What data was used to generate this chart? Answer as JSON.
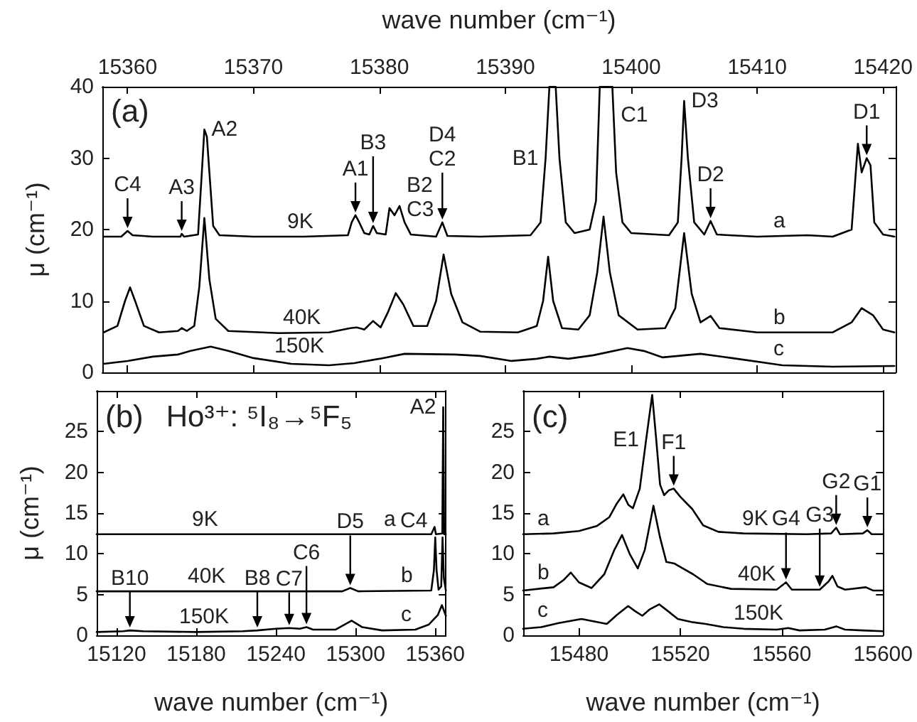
{
  "chart_data": [
    {
      "type": "line",
      "title": "(a)",
      "xlabel": "wave number (cm⁻¹)",
      "ylabel": "μ (cm⁻¹)",
      "xlim": [
        15358,
        15421
      ],
      "xticks": [
        15360,
        15370,
        15380,
        15390,
        15400,
        15410,
        15420
      ],
      "ylim": [
        0,
        40
      ],
      "yticks": [
        0,
        10,
        20,
        30,
        40
      ],
      "marker": "none",
      "series": [
        {
          "name": "9K",
          "color": "#000000",
          "x": [
            15358.1,
            15359.5,
            15360.0,
            15360.4,
            15362,
            15364.2,
            15364.3,
            15364.5,
            15365.6,
            15365.9,
            15366.1,
            15366.3,
            15366.5,
            15366.8,
            15367.3,
            15370,
            15374,
            15377.5,
            15377.8,
            15378.1,
            15378.4,
            15378.8,
            15379.2,
            15379.5,
            15379.8,
            15380.5,
            15380.8,
            15381.2,
            15381.6,
            15382,
            15382.5,
            15384.5,
            15385,
            15385.4,
            15388,
            15392,
            15392.8,
            15393.2,
            15393.5,
            15394,
            15394.3,
            15394.8,
            15395.5,
            15396.7,
            15397.2,
            15397.5,
            15398.5,
            15398.8,
            15399.3,
            15400,
            15403,
            15403.7,
            15404,
            15404.2,
            15404.5,
            15405,
            15405.8,
            15406.3,
            15406.8,
            15410,
            15414,
            15416,
            15417.5,
            15418,
            15418.3,
            15418.7,
            15419,
            15419.3,
            15420,
            15420.9
          ],
          "values": [
            19,
            19,
            19.8,
            19.2,
            19,
            19,
            19.4,
            19,
            19.3,
            28,
            34,
            33,
            28,
            20.5,
            19.2,
            19,
            19,
            19.2,
            21,
            22,
            21,
            19.5,
            19.3,
            20.5,
            19.5,
            19.3,
            23,
            22,
            23.3,
            21,
            19.3,
            19,
            21,
            19.1,
            19,
            19.2,
            21,
            30,
            40,
            40,
            30,
            21,
            19.5,
            20,
            24,
            40,
            40,
            28,
            21,
            19.5,
            19.2,
            21,
            30,
            38,
            30,
            21,
            19.3,
            21.2,
            19.3,
            19,
            19.2,
            19,
            20,
            32,
            28,
            30,
            29,
            21,
            19.3,
            19
          ]
        },
        {
          "name": "40K",
          "color": "#000000",
          "x": [
            15358.1,
            15359.2,
            15359.8,
            15360.2,
            15360.6,
            15361.3,
            15362.5,
            15364,
            15364.3,
            15364.7,
            15365.3,
            15365.7,
            15366.1,
            15366.5,
            15367,
            15368,
            15372,
            15376,
            15377.7,
            15378.2,
            15378.8,
            15379.5,
            15380.1,
            15380.7,
            15381.3,
            15381.9,
            15382.7,
            15383.8,
            15384.5,
            15385.1,
            15385.7,
            15386.6,
            15388,
            15391,
            15392.5,
            15393.0,
            15393.4,
            15393.8,
            15394.5,
            15395.8,
            15396.7,
            15397.3,
            15397.8,
            15398.3,
            15399,
            15400.5,
            15402.7,
            15403.5,
            15404.2,
            15404.8,
            15405.5,
            15406.3,
            15407,
            15410,
            15416,
            15417.5,
            15418.3,
            15419.2,
            15420,
            15420.9
          ],
          "values": [
            5.6,
            6.5,
            10,
            11.9,
            10,
            6.5,
            5.6,
            5.8,
            6.2,
            5.8,
            6.5,
            12,
            21.6,
            13,
            7.5,
            5.8,
            5.5,
            5.6,
            6.2,
            6.3,
            6.0,
            7.2,
            6.3,
            8.5,
            11.1,
            9.5,
            6.5,
            6.5,
            10,
            16.5,
            11,
            7,
            5.7,
            5.6,
            6.5,
            10,
            16.2,
            10,
            6.2,
            6,
            8,
            14,
            21.8,
            14,
            8,
            6,
            6.2,
            9,
            19.5,
            11,
            7,
            7.9,
            6.2,
            5.6,
            5.6,
            7,
            9.0,
            8,
            6,
            5.6
          ]
        },
        {
          "name": "150K",
          "color": "#000000",
          "x": [
            15358.1,
            15360,
            15362,
            15364,
            15365,
            15366.6,
            15368,
            15370,
            15373,
            15376,
            15378,
            15380,
            15382,
            15386,
            15388,
            15390.5,
            15392.5,
            15393.5,
            15395,
            15397,
            15399.7,
            15401,
            15402.5,
            15405.5,
            15408,
            15412,
            15416,
            15420.9
          ],
          "values": [
            1.2,
            1.6,
            2.2,
            2.5,
            3.0,
            3.6,
            3.0,
            2.0,
            1.2,
            1.0,
            1.3,
            1.9,
            2.6,
            2.5,
            2.3,
            1.6,
            1.9,
            2.2,
            1.9,
            2.4,
            3.4,
            3.0,
            2.1,
            2.6,
            2.0,
            1.0,
            0.8,
            0.9
          ]
        }
      ],
      "annotations": [
        "a",
        "b",
        "c",
        {
          "text": "C4",
          "x": 15360.0,
          "y": 19.8
        },
        {
          "text": "A3",
          "x": 15364.3,
          "y": 19.4
        },
        {
          "text": "A1",
          "x": 15378.1,
          "y": 22
        },
        {
          "text": "B3",
          "x": 15379.5,
          "y": 20.5
        },
        {
          "text": "B2\nC3",
          "x": 15381.6,
          "y": 23.3
        },
        {
          "text": "D4\nC2",
          "x": 15385,
          "y": 21
        },
        {
          "text": "D2",
          "x": 15406.3,
          "y": 21.2
        },
        {
          "text": "D1",
          "x": 15418.7,
          "y": 30
        },
        {
          "text": "A2",
          "x": 15366.1,
          "y": 34
        },
        {
          "text": "B1",
          "x": 15393.2,
          "y": 30
        },
        {
          "text": "C1",
          "x": 15398.6,
          "y": 36
        },
        {
          "text": "D3",
          "x": 15404.2,
          "y": 38
        }
      ]
    },
    {
      "type": "line",
      "title": "(b)",
      "xlabel": "wave number (cm⁻¹)",
      "ylabel": "μ (cm⁻¹)",
      "xlim": [
        15105,
        15368
      ],
      "xticks": [
        15120,
        15180,
        15240,
        15300,
        15360
      ],
      "ylim": [
        0,
        30
      ],
      "yticks": [
        0,
        5,
        10,
        15,
        20,
        25
      ],
      "marker": "none",
      "series": [
        {
          "name": "9K",
          "color": "#000000",
          "x": [
            15105,
            15200,
            15300,
            15357,
            15359.5,
            15360.5,
            15365.3,
            15366,
            15366.7,
            15368
          ],
          "values": [
            12.4,
            12.4,
            12.4,
            12.4,
            13.3,
            12.4,
            12.5,
            28,
            12.4,
            12.4
          ]
        },
        {
          "name": "40K",
          "color": "#000000",
          "x": [
            15105,
            15290,
            15296,
            15302,
            15357,
            15359,
            15360,
            15361,
            15362.5,
            15364.5,
            15365.5,
            15366.5,
            15368
          ],
          "values": [
            5.4,
            5.4,
            5.8,
            5.4,
            5.5,
            8,
            12,
            8,
            5.6,
            6,
            12,
            7,
            5.5
          ]
        },
        {
          "name": "150K",
          "color": "#000000",
          "x": [
            15105,
            15125,
            15130,
            15140,
            15180,
            15215,
            15226,
            15240,
            15250,
            15258,
            15263,
            15268,
            15285,
            15297,
            15305,
            15320,
            15345,
            15355,
            15362,
            15365,
            15368
          ],
          "values": [
            0.4,
            0.5,
            0.6,
            0.5,
            0.4,
            0.5,
            0.6,
            0.8,
            0.9,
            0.8,
            1.0,
            0.7,
            0.7,
            1.8,
            1.0,
            0.6,
            0.7,
            1.3,
            2.5,
            3.7,
            2.4
          ]
        }
      ],
      "annotations": [
        "Ho³⁺: ⁵I₈→⁵F₅",
        "a",
        "b",
        "c",
        {
          "text": "B10",
          "x": 15130,
          "y": 0.6
        },
        {
          "text": "B8",
          "x": 15226,
          "y": 0.6
        },
        {
          "text": "C7",
          "x": 15250,
          "y": 0.9
        },
        {
          "text": "D5",
          "x": 15296,
          "y": 5.8
        },
        {
          "text": "A2",
          "x": 15366,
          "y": 28
        },
        {
          "text": "C4",
          "x": 15359.5,
          "y": 13.3
        },
        {
          "text": "C6",
          "x": 15263,
          "y": 1.0
        }
      ]
    },
    {
      "type": "line",
      "title": "(c)",
      "xlabel": "wave number (cm⁻¹)",
      "xlim": [
        15458,
        15600
      ],
      "xticks": [
        15480,
        15520,
        15560,
        15600
      ],
      "ylim": [
        0,
        30
      ],
      "yticks": [
        0,
        5,
        10,
        15,
        20,
        25
      ],
      "marker": "none",
      "series": [
        {
          "name": "9K",
          "color": "#000000",
          "x": [
            15458,
            15470,
            15480,
            15487,
            15492,
            15495,
            15497.5,
            15499.5,
            15501.3,
            15504,
            15506.5,
            15508.9,
            15510.5,
            15512,
            15513.6,
            15515.5,
            15517.4,
            15520,
            15524.7,
            15529,
            15535,
            15545,
            15570,
            15579.5,
            15581.5,
            15583,
            15592,
            15593.8,
            15595.5,
            15600
          ],
          "values": [
            12.4,
            12.5,
            12.8,
            13.4,
            14.5,
            16.2,
            17.3,
            16.0,
            15.6,
            18,
            24,
            29.5,
            24,
            18.5,
            17.2,
            17.8,
            18.0,
            17,
            15.5,
            13.5,
            12.7,
            12.5,
            12.4,
            12.5,
            13.2,
            12.4,
            12.5,
            12.9,
            12.4,
            12.4
          ]
        },
        {
          "name": "40K",
          "color": "#000000",
          "x": [
            15458,
            15470,
            15474,
            15476.8,
            15480,
            15485,
            15490,
            15494,
            15497,
            15500,
            15503.2,
            15506,
            15509.4,
            15512,
            15514.5,
            15517.7,
            15521,
            15525,
            15530.6,
            15540,
            15558,
            15561.7,
            15564,
            15575,
            15578.5,
            15580,
            15582,
            15585,
            15593.2,
            15596,
            15600
          ],
          "values": [
            5.5,
            5.9,
            6.8,
            7.7,
            6.5,
            5.8,
            7.5,
            10.5,
            12.3,
            10,
            8.2,
            10.5,
            15.9,
            12,
            9.0,
            8.8,
            8.2,
            7.5,
            6.3,
            5.7,
            5.6,
            6.5,
            5.6,
            5.6,
            6.6,
            7.3,
            6.0,
            5.6,
            5.9,
            5.5,
            5.5
          ]
        },
        {
          "name": "150K",
          "color": "#000000",
          "x": [
            15458,
            15465,
            15472,
            15481,
            15486,
            15491,
            15495,
            15499.4,
            15502,
            15505,
            15508,
            15511.7,
            15515,
            15519,
            15525,
            15530,
            15537,
            15545,
            15558,
            15562.6,
            15567,
            15577,
            15581.5,
            15585,
            15592,
            15600
          ],
          "values": [
            0.8,
            1.0,
            1.5,
            2.0,
            1.7,
            1.4,
            2.5,
            3.6,
            3.0,
            2.4,
            3.2,
            3.8,
            3.0,
            2.0,
            1.6,
            1.4,
            1.0,
            0.8,
            0.7,
            0.9,
            0.6,
            0.7,
            1.1,
            0.7,
            0.6,
            0.5
          ]
        }
      ],
      "annotations": [
        "a",
        "b",
        "c",
        {
          "text": "G3",
          "x": 15575,
          "y": 5.6
        },
        {
          "text": "G2",
          "x": 15581.5,
          "y": 13.2
        },
        {
          "text": "G1",
          "x": 15593.8,
          "y": 12.9
        },
        {
          "text": "E1",
          "x": 15506.5,
          "y": 24
        },
        {
          "text": "F1",
          "x": 15517.4,
          "y": 18.0
        },
        {
          "text": "G4",
          "x": 15561.7,
          "y": 6.5
        }
      ]
    }
  ]
}
